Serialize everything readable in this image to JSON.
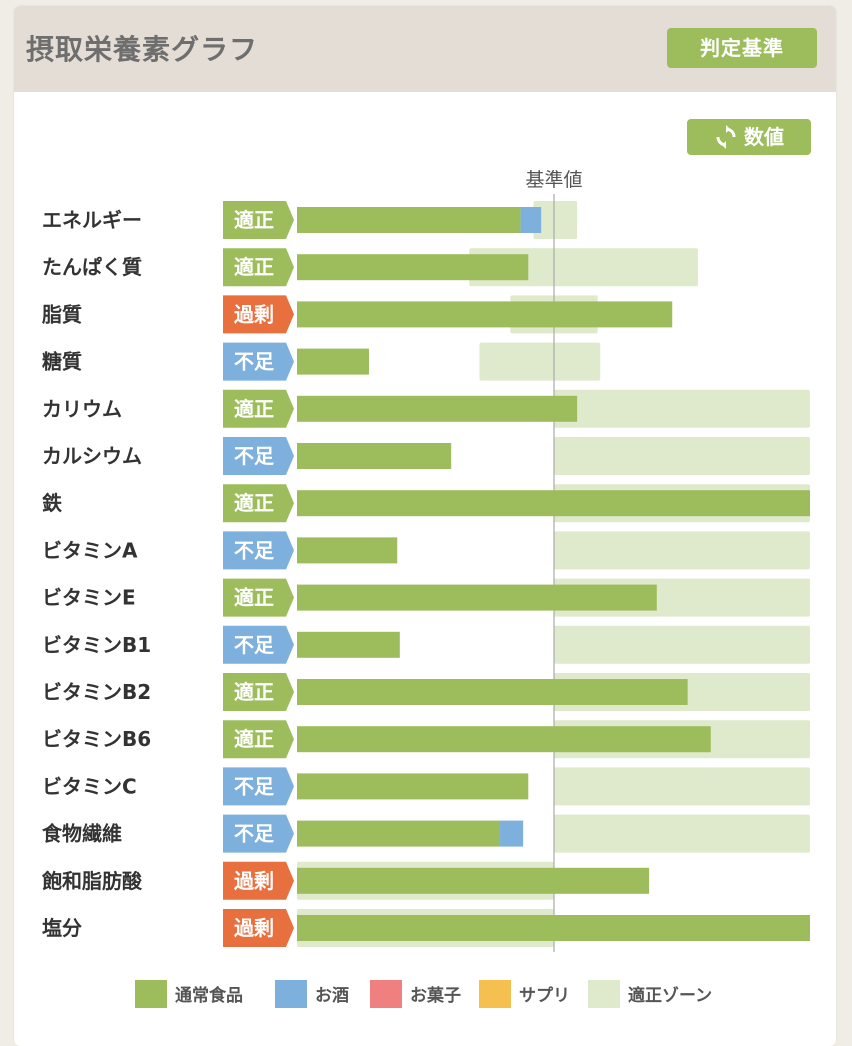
{
  "header": {
    "title": "摂取栄養素グラフ",
    "criteria_button": "判定基準",
    "values_button": "数値"
  },
  "colors": {
    "normal_food": "#9dbd5c",
    "alcohol": "#7eb0dd",
    "snacks": "#f08080",
    "supplements": "#f5c04f",
    "appropriate_zone": "#dfe9cc",
    "status_appropriate": "#9dbd5c",
    "status_deficient": "#7eb0dd",
    "status_excess": "#e8703f"
  },
  "chart_data": {
    "type": "bar",
    "orientation": "horizontal",
    "stacked": true,
    "reference_label": "基準値",
    "reference_value": 100,
    "xlim": [
      0,
      200
    ],
    "grid": false,
    "legend_position": "bottom",
    "categories": [
      "エネルギー",
      "たんぱく質",
      "脂質",
      "糖質",
      "カリウム",
      "カルシウム",
      "鉄",
      "ビタミンA",
      "ビタミンE",
      "ビタミンB1",
      "ビタミンB2",
      "ビタミンB6",
      "ビタミンC",
      "食物繊維",
      "飽和脂肪酸",
      "塩分"
    ],
    "status": [
      "適正",
      "適正",
      "過剰",
      "不足",
      "適正",
      "不足",
      "適正",
      "不足",
      "適正",
      "不足",
      "適正",
      "適正",
      "不足",
      "不足",
      "過剰",
      "過剰"
    ],
    "series": [
      {
        "name": "通常食品",
        "values": [
          87,
          90,
          146,
          28,
          109,
          60,
          200,
          39,
          140,
          40,
          152,
          161,
          90,
          79,
          137,
          200
        ]
      },
      {
        "name": "お酒",
        "values": [
          8,
          0,
          0,
          0,
          0,
          0,
          0,
          0,
          0,
          0,
          0,
          0,
          0,
          9,
          0,
          0
        ]
      },
      {
        "name": "お菓子",
        "values": [
          0,
          0,
          0,
          0,
          0,
          0,
          0,
          0,
          0,
          0,
          0,
          0,
          0,
          0,
          0,
          0
        ]
      },
      {
        "name": "サプリ",
        "values": [
          0,
          0,
          0,
          0,
          0,
          0,
          0,
          0,
          0,
          0,
          0,
          0,
          0,
          0,
          0,
          0
        ]
      }
    ],
    "appropriate_zone": [
      [
        92,
        109
      ],
      [
        67,
        156
      ],
      [
        83,
        117
      ],
      [
        71,
        118
      ],
      [
        100,
        200
      ],
      [
        100,
        200
      ],
      [
        100,
        200
      ],
      [
        100,
        200
      ],
      [
        100,
        200
      ],
      [
        100,
        200
      ],
      [
        100,
        200
      ],
      [
        100,
        200
      ],
      [
        100,
        200
      ],
      [
        100,
        200
      ],
      [
        0,
        100
      ],
      [
        0,
        100
      ]
    ],
    "legend": [
      "通常食品",
      "お酒",
      "お菓子",
      "サプリ",
      "適正ゾーン"
    ]
  }
}
